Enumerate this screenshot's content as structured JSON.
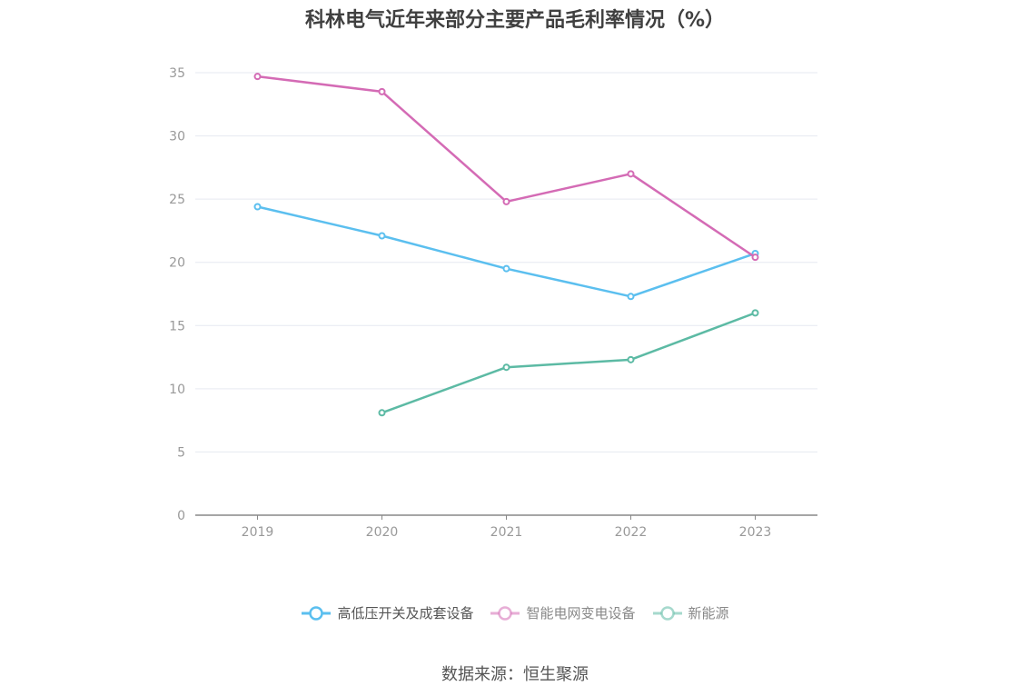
{
  "title": "科林电气近年来部分主要产品毛利率情况（%）",
  "source": "数据来源：恒生聚源",
  "chart_data": {
    "type": "line",
    "title": "科林电气近年来部分主要产品毛利率情况（%）",
    "categories": [
      "2019",
      "2020",
      "2021",
      "2022",
      "2023"
    ],
    "ylim": [
      0,
      35
    ],
    "yticks": [
      0,
      5,
      10,
      15,
      20,
      25,
      30,
      35
    ],
    "grid": true,
    "legend_position": "bottom",
    "series": [
      {
        "name": "高低压开关及成套设备",
        "color": "#5bbfef",
        "values": [
          24.4,
          22.1,
          19.5,
          17.3,
          20.7
        ]
      },
      {
        "name": "智能电网变电设备",
        "color": "#d46bb5",
        "values": [
          34.7,
          33.5,
          24.8,
          27.0,
          20.4
        ]
      },
      {
        "name": "新能源",
        "color": "#5cbaa4",
        "values": [
          null,
          8.1,
          11.7,
          12.3,
          16.0
        ]
      }
    ]
  }
}
